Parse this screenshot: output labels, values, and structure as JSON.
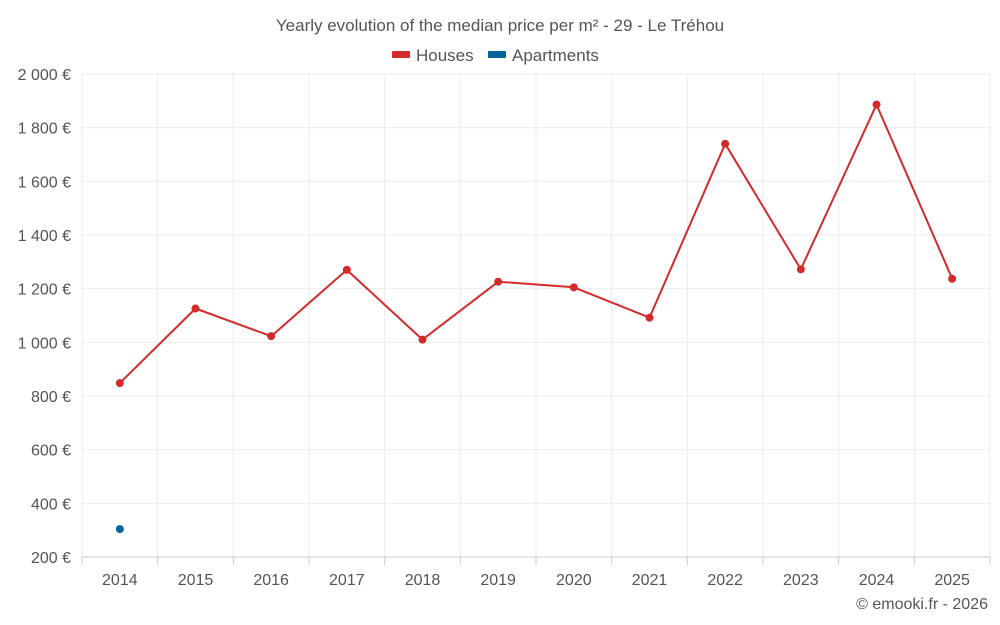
{
  "chart_data": {
    "type": "line",
    "title": "Yearly evolution of the median price per m² - 29 - Le Tréhou",
    "categories": [
      "2014",
      "2015",
      "2016",
      "2017",
      "2018",
      "2019",
      "2020",
      "2021",
      "2022",
      "2023",
      "2024",
      "2025"
    ],
    "series": [
      {
        "name": "Houses",
        "color": "#d32a2a",
        "values": [
          848,
          1126,
          1023,
          1270,
          1010,
          1226,
          1205,
          1092,
          1740,
          1272,
          1886,
          1237
        ]
      },
      {
        "name": "Apartments",
        "color": "#00649c",
        "values": [
          304,
          null,
          null,
          null,
          null,
          null,
          null,
          null,
          null,
          null,
          null,
          null
        ]
      }
    ],
    "ylim": [
      200,
      2000
    ],
    "yticks": [
      200,
      400,
      600,
      800,
      1000,
      1200,
      1400,
      1600,
      1800,
      2000
    ],
    "ytick_labels": [
      "200 €",
      "400 €",
      "600 €",
      "800 €",
      "1 000 €",
      "1 200 €",
      "1 400 €",
      "1 600 €",
      "1 800 €",
      "2 000 €"
    ],
    "grid": true,
    "legend_position": "top-center"
  },
  "credit": "© emooki.fr - 2026"
}
